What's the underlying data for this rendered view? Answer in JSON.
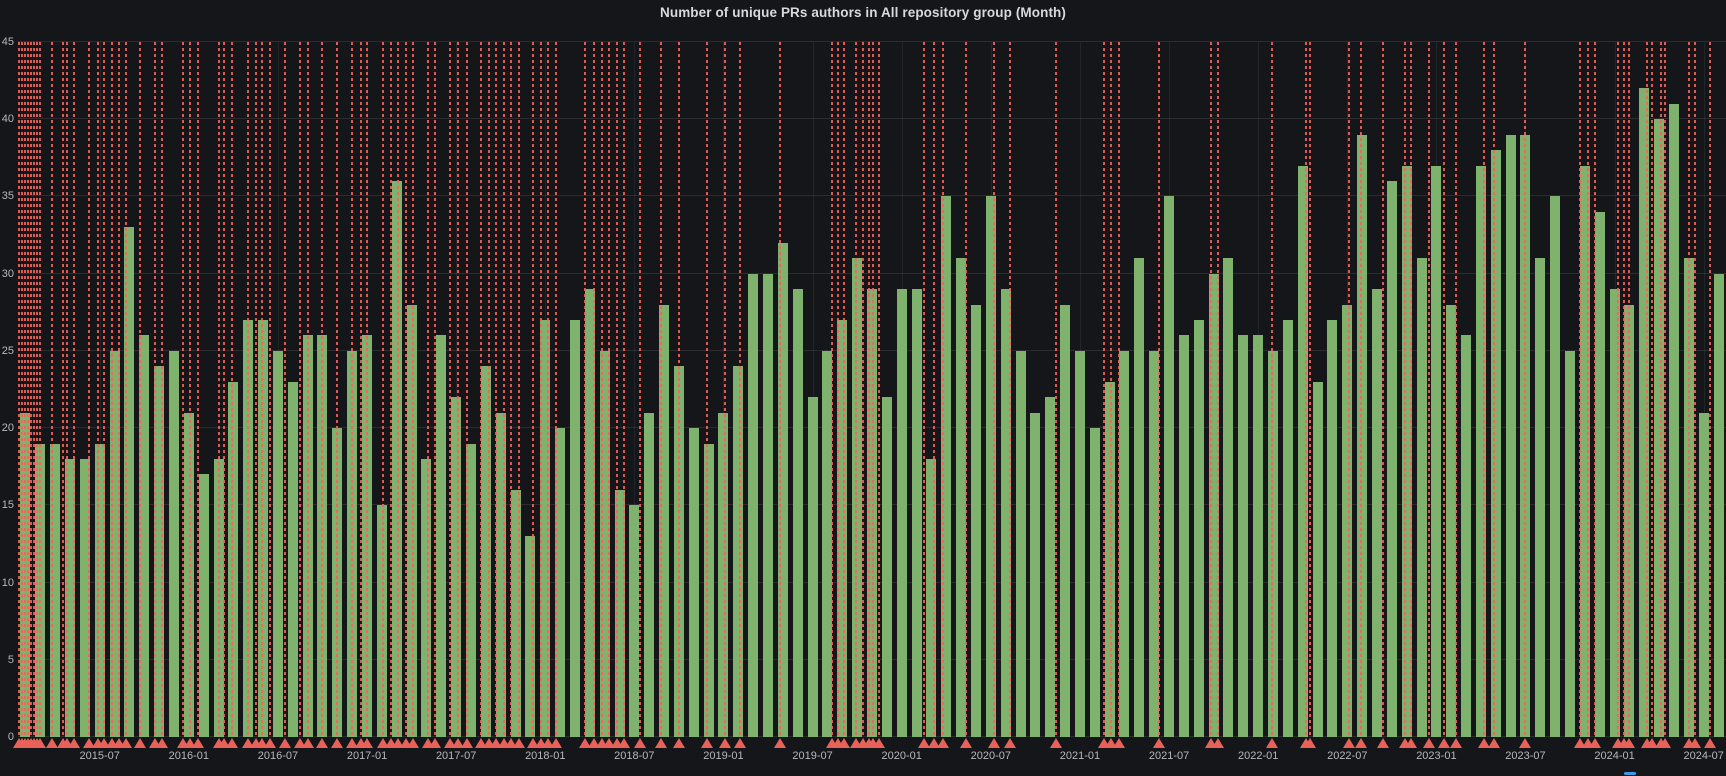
{
  "panel": {
    "title": "Number of unique PRs authors in All repository group (Month)"
  },
  "colors": {
    "background": "#141619",
    "bar": "#7EB26D",
    "annotation": "#f0645c",
    "grid": "rgba(204,204,220,0.12)",
    "tick_label": "#b7b8be",
    "title": "#d8d9da",
    "resize_handle": "#3b9ae8"
  },
  "chart_data": {
    "type": "bar",
    "title": "Number of unique PRs authors in All repository group (Month)",
    "xlabel": "",
    "ylabel": "",
    "ylim": [
      0,
      45
    ],
    "grid": true,
    "legend": "none",
    "y_ticks": [
      0,
      5,
      10,
      15,
      20,
      25,
      30,
      35,
      40,
      45
    ],
    "x_tick_labels": [
      "2015-07",
      "2016-01",
      "2016-07",
      "2017-01",
      "2017-07",
      "2018-01",
      "2018-07",
      "2019-01",
      "2019-07",
      "2020-01",
      "2020-07",
      "2021-01",
      "2021-07",
      "2022-01",
      "2022-07",
      "2023-01",
      "2023-07",
      "2024-01",
      "2024-07"
    ],
    "x": [
      "2015-02",
      "2015-03",
      "2015-04",
      "2015-05",
      "2015-06",
      "2015-07",
      "2015-08",
      "2015-09",
      "2015-10",
      "2015-11",
      "2015-12",
      "2016-01",
      "2016-02",
      "2016-03",
      "2016-04",
      "2016-05",
      "2016-06",
      "2016-07",
      "2016-08",
      "2016-09",
      "2016-10",
      "2016-11",
      "2016-12",
      "2017-01",
      "2017-02",
      "2017-03",
      "2017-04",
      "2017-05",
      "2017-06",
      "2017-07",
      "2017-08",
      "2017-09",
      "2017-10",
      "2017-11",
      "2017-12",
      "2018-01",
      "2018-02",
      "2018-03",
      "2018-04",
      "2018-05",
      "2018-06",
      "2018-07",
      "2018-08",
      "2018-09",
      "2018-10",
      "2018-11",
      "2018-12",
      "2019-01",
      "2019-02",
      "2019-03",
      "2019-04",
      "2019-05",
      "2019-06",
      "2019-07",
      "2019-08",
      "2019-09",
      "2019-10",
      "2019-11",
      "2019-12",
      "2020-01",
      "2020-02",
      "2020-03",
      "2020-04",
      "2020-05",
      "2020-06",
      "2020-07",
      "2020-08",
      "2020-09",
      "2020-10",
      "2020-11",
      "2020-12",
      "2021-01",
      "2021-02",
      "2021-03",
      "2021-04",
      "2021-05",
      "2021-06",
      "2021-07",
      "2021-08",
      "2021-09",
      "2021-10",
      "2021-11",
      "2021-12",
      "2022-01",
      "2022-02",
      "2022-03",
      "2022-04",
      "2022-05",
      "2022-06",
      "2022-07",
      "2022-08",
      "2022-09",
      "2022-10",
      "2022-11",
      "2022-12",
      "2023-01",
      "2023-02",
      "2023-03",
      "2023-04",
      "2023-05",
      "2023-06",
      "2023-07",
      "2023-08",
      "2023-09",
      "2023-10",
      "2023-11",
      "2023-12",
      "2024-01",
      "2024-02",
      "2024-03",
      "2024-04",
      "2024-05",
      "2024-06",
      "2024-07",
      "2024-08"
    ],
    "values": [
      21,
      19,
      19,
      18,
      18,
      19,
      25,
      33,
      26,
      24,
      25,
      21,
      17,
      18,
      23,
      27,
      27,
      25,
      23,
      26,
      26,
      20,
      25,
      26,
      15,
      36,
      28,
      18,
      26,
      22,
      19,
      24,
      21,
      16,
      13,
      27,
      20,
      27,
      29,
      25,
      16,
      15,
      21,
      28,
      24,
      20,
      19,
      21,
      24,
      30,
      30,
      32,
      29,
      22,
      25,
      27,
      31,
      29,
      22,
      29,
      29,
      18,
      35,
      31,
      28,
      35,
      29,
      25,
      21,
      22,
      28,
      25,
      20,
      23,
      25,
      31,
      25,
      35,
      26,
      27,
      30,
      31,
      26,
      26,
      25,
      27,
      37,
      23,
      27,
      28,
      39,
      29,
      36,
      37,
      31,
      37,
      28,
      26,
      37,
      38,
      39,
      39,
      31,
      35,
      25,
      37,
      34,
      29,
      28,
      42,
      40,
      41,
      31,
      21,
      30
    ],
    "annotations": {
      "style": "vertical-dashed-line-with-triangle-marker",
      "color": "#f0645c",
      "positions_month_index": [
        -0.4,
        -0.2,
        0,
        0.2,
        0.4,
        0.6,
        0.8,
        1.0,
        1.8,
        2.5,
        2.8,
        3.3,
        4.3,
        4.9,
        5.3,
        5.8,
        6.3,
        6.8,
        7.7,
        8.7,
        9.2,
        10.6,
        11.1,
        11.6,
        13.0,
        13.4,
        13.9,
        15.0,
        15.5,
        15.9,
        16.5,
        17.5,
        18.5,
        19.0,
        20.0,
        21.0,
        22.0,
        22.6,
        23.0,
        24.1,
        24.6,
        25.1,
        25.6,
        26.1,
        27.1,
        27.6,
        28.6,
        29.1,
        29.7,
        30.7,
        31.2,
        31.7,
        32.2,
        32.7,
        33.2,
        34.2,
        34.7,
        35.2,
        35.7,
        37.7,
        38.3,
        38.8,
        39.3,
        39.8,
        40.3,
        41.4,
        42.8,
        44.0,
        45.9,
        47.1,
        48.1,
        50.8,
        54.3,
        54.7,
        55.1,
        55.9,
        56.4,
        56.8,
        57.1,
        57.5,
        60.5,
        61.2,
        61.8,
        63.3,
        65.2,
        66.3,
        69.4,
        72.6,
        73.1,
        73.6,
        76.3,
        79.8,
        80.3,
        83.9,
        86.2,
        86.5,
        89.1,
        89.9,
        91.4,
        92.9,
        93.3,
        94.5,
        95.5,
        96.3,
        98.2,
        98.9,
        101.0,
        104.7,
        105.2,
        105.7,
        107.2,
        107.6,
        108.0,
        109.2,
        109.5,
        110.1,
        110.4,
        112.0,
        112.4,
        113.4
      ]
    }
  }
}
